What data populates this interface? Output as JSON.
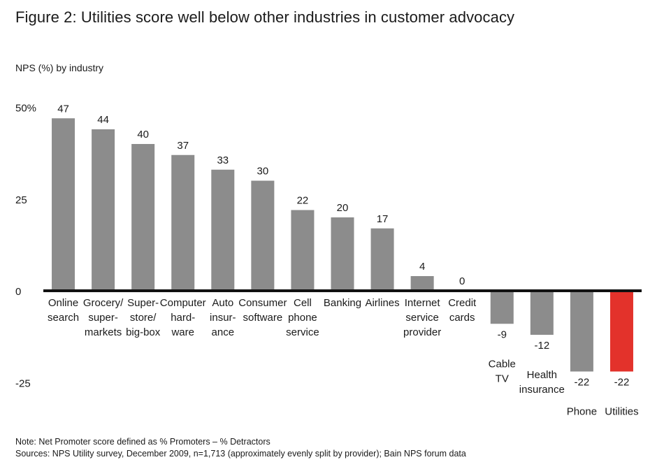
{
  "title": "Figure 2: Utilities score well below other industries in customer advocacy",
  "notes": {
    "note": "Note: Net Promoter score defined as % Promoters – % Detractors",
    "sources": "Sources: NPS Utility survey, December 2009, n=1,713 (approximately evenly split by provider); Bain NPS forum data"
  },
  "colors": {
    "bar": "#8c8c8c",
    "highlight": "#e3322b",
    "axis": "#111111",
    "text": "#1a1a1a"
  },
  "chart_data": {
    "type": "bar",
    "title": "Figure 2: Utilities score well below other industries in customer advocacy",
    "ylabel": "NPS (%) by industry",
    "xlabel": "",
    "ylim": [
      -25,
      50
    ],
    "yticks": [
      {
        "value": 50,
        "label": "50%"
      },
      {
        "value": 25,
        "label": "25"
      },
      {
        "value": 0,
        "label": "0"
      },
      {
        "value": -25,
        "label": "-25"
      }
    ],
    "grid": false,
    "categories": [
      [
        "Online",
        "search"
      ],
      [
        "Grocery/",
        "super-",
        "markets"
      ],
      [
        "Super-",
        "store/",
        "big-box"
      ],
      [
        "Computer",
        "hard-",
        "ware"
      ],
      [
        "Auto",
        "insur-",
        "ance"
      ],
      [
        "Consumer",
        "software"
      ],
      [
        "Cell",
        "phone",
        "service"
      ],
      [
        "Banking"
      ],
      [
        "Airlines"
      ],
      [
        "Internet",
        "service",
        "provider"
      ],
      [
        "Credit",
        "cards"
      ],
      [
        "Cable",
        "TV"
      ],
      [
        "Health",
        "insurance"
      ],
      [
        "Phone"
      ],
      [
        "Utilities"
      ]
    ],
    "values": [
      47,
      44,
      40,
      37,
      33,
      30,
      22,
      20,
      17,
      4,
      0,
      -9,
      -12,
      -22,
      -22
    ],
    "value_labels": [
      "47",
      "44",
      "40",
      "37",
      "33",
      "30",
      "22",
      "20",
      "17",
      "4",
      "0",
      "-9",
      "-12",
      "-22",
      "-22"
    ],
    "highlight": "Utilities"
  }
}
